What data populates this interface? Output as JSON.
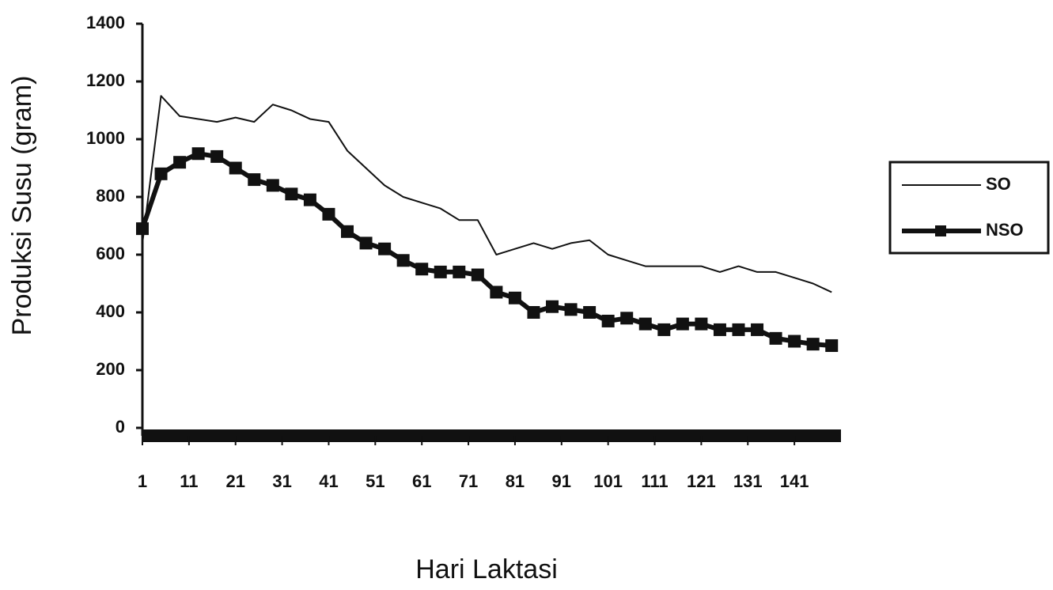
{
  "chart_data": {
    "type": "line",
    "x_label": "Hari Laktasi",
    "y_label": "Produksi Susu (gram)",
    "x": [
      1,
      5,
      9,
      13,
      17,
      21,
      25,
      29,
      33,
      37,
      41,
      45,
      49,
      53,
      57,
      61,
      65,
      69,
      73,
      77,
      81,
      85,
      89,
      93,
      97,
      101,
      105,
      109,
      113,
      117,
      121,
      125,
      129,
      133,
      137,
      141,
      145,
      149
    ],
    "series": [
      {
        "name": "SO",
        "color": "#111111",
        "marker": "none",
        "values": [
          640,
          1150,
          1080,
          1070,
          1060,
          1075,
          1060,
          1120,
          1100,
          1070,
          1060,
          960,
          900,
          840,
          800,
          780,
          760,
          720,
          720,
          600,
          620,
          640,
          620,
          640,
          650,
          600,
          580,
          560,
          560,
          560,
          560,
          540,
          560,
          540,
          540,
          520,
          500,
          470
        ]
      },
      {
        "name": "NSO",
        "color": "#111111",
        "marker": "square",
        "values": [
          690,
          880,
          920,
          950,
          940,
          900,
          860,
          840,
          810,
          790,
          740,
          680,
          640,
          620,
          580,
          550,
          540,
          540,
          530,
          470,
          450,
          400,
          420,
          410,
          400,
          370,
          380,
          360,
          340,
          360,
          360,
          340,
          340,
          340,
          310,
          300,
          290,
          285
        ]
      }
    ],
    "xlim": [
      1,
      151
    ],
    "xticks": [
      1,
      11,
      21,
      31,
      41,
      51,
      61,
      71,
      81,
      91,
      101,
      111,
      121,
      131,
      141
    ],
    "ylim": [
      0,
      1400
    ],
    "yticks": [
      0,
      200,
      400,
      600,
      800,
      1000,
      1200,
      1400
    ],
    "grid": false,
    "legend": "right"
  }
}
